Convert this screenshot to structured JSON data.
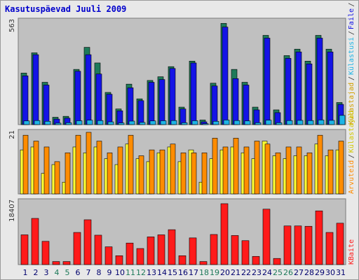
{
  "chart_data": [
    {
      "type": "bar",
      "title": "Kasutuspäevad Juuli 2009",
      "categories": [
        "1",
        "2",
        "3",
        "4",
        "5",
        "6",
        "7",
        "8",
        "9",
        "10",
        "11",
        "12",
        "13",
        "14",
        "15",
        "16",
        "17",
        "18",
        "19",
        "20",
        "21",
        "22",
        "23",
        "24",
        "25",
        "26",
        "27",
        "28",
        "29",
        "30",
        "31"
      ],
      "ymax_label": "563",
      "ylim": [
        0,
        563
      ],
      "side_labels": [
        "Külastajad",
        "Külastusi",
        "Faile",
        "Pöördumisi"
      ],
      "series": [
        {
          "name": "Pöördumisi",
          "color": "#1e7a5a",
          "values": [
            280,
            390,
            230,
            40,
            45,
            300,
            420,
            335,
            175,
            85,
            220,
            140,
            240,
            260,
            315,
            95,
            345,
            25,
            225,
            550,
            300,
            230,
            95,
            485,
            80,
            375,
            410,
            345,
            485,
            410,
            120
          ]
        },
        {
          "name": "Faile",
          "color": "#1414e6",
          "values": [
            265,
            380,
            215,
            30,
            35,
            290,
            380,
            275,
            165,
            75,
            200,
            130,
            230,
            245,
            305,
            85,
            335,
            15,
            210,
            530,
            250,
            215,
            80,
            470,
            65,
            360,
            395,
            330,
            470,
            395,
            110
          ]
        },
        {
          "name": "Külastusi",
          "color": "#1eb4e6",
          "values": [
            20,
            22,
            18,
            8,
            10,
            21,
            24,
            22,
            15,
            9,
            19,
            12,
            20,
            21,
            22,
            10,
            21,
            5,
            18,
            25,
            22,
            20,
            10,
            24,
            10,
            22,
            23,
            22,
            25,
            23,
            50
          ]
        }
      ]
    },
    {
      "type": "bar",
      "ymax_label": "21",
      "ylim": [
        0,
        21
      ],
      "side_labels": [
        "Arvuteid",
        "Külastajad"
      ],
      "series": [
        {
          "name": "Külastajad",
          "color": "#ffff33",
          "values": [
            15,
            16,
            7,
            10,
            4,
            16,
            14,
            16,
            12,
            10,
            17,
            12,
            11,
            14,
            16,
            11,
            15,
            4,
            12,
            15,
            16,
            14,
            12,
            18,
            13,
            12,
            13,
            13,
            17,
            13,
            15
          ]
        },
        {
          "name": "Arvuteid",
          "color": "#ff8c00",
          "values": [
            20,
            18,
            16,
            11,
            14,
            20,
            21,
            18,
            14,
            16,
            20,
            13,
            15,
            15,
            17,
            14,
            14,
            14,
            19,
            16,
            19,
            16,
            18,
            17,
            14,
            16,
            16,
            14,
            20,
            15,
            18
          ]
        }
      ]
    },
    {
      "type": "bar",
      "ymax_label": "18407",
      "ylim": [
        0,
        18407
      ],
      "side_labels": [
        "KBaite"
      ],
      "series": [
        {
          "name": "KBaite",
          "color": "#ff1a1a",
          "values": [
            8700,
            13500,
            6800,
            900,
            900,
            9400,
            13100,
            8600,
            5200,
            2600,
            6300,
            4700,
            8100,
            8700,
            10200,
            2600,
            7800,
            900,
            8800,
            17800,
            8500,
            7000,
            2400,
            16200,
            1800,
            11300,
            11300,
            11200,
            15700,
            9400,
            12100
          ]
        }
      ]
    }
  ],
  "weekend_days": [
    4,
    5,
    11,
    12,
    18,
    19,
    25,
    26
  ],
  "colors": {
    "panel_bg": "#c0c0c0",
    "frame_bg": "#e8e8e8",
    "day_label": "#00006e",
    "weekend_label": "#1e7a5a",
    "title": "#0000cc"
  }
}
